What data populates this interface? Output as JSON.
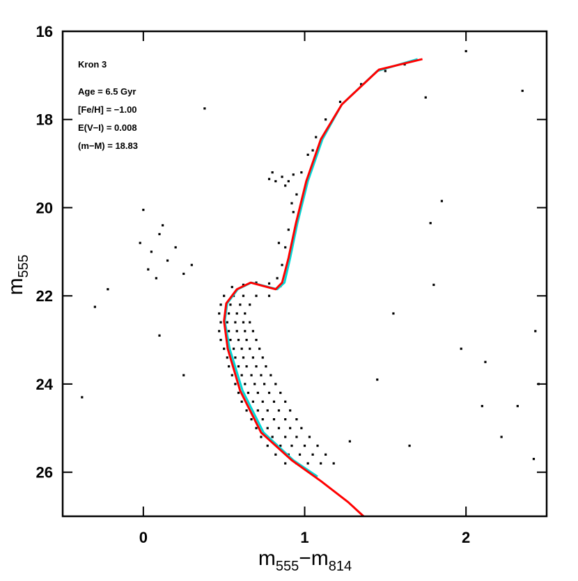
{
  "chart_data": {
    "type": "scatter",
    "annotations": [
      "Kron 3",
      "Age = 6.5 Gyr",
      "[Fe/H] = −1.00",
      "E(V−I) = 0.008",
      "(m−M) = 18.83"
    ],
    "xlabel": [
      "m",
      "555",
      "−m",
      "814"
    ],
    "ylabel": [
      "m",
      "555"
    ],
    "xlim": [
      -0.5,
      2.5
    ],
    "ylim": [
      27,
      16
    ],
    "xticks": [
      0,
      1,
      2
    ],
    "yticks": [
      16,
      18,
      20,
      22,
      24,
      26
    ],
    "points": {
      "color": "#000000",
      "x": [
        0.5,
        0.56,
        0.62,
        0.7,
        0.78,
        0.48,
        0.54,
        0.6,
        0.66,
        0.47,
        0.53,
        0.58,
        0.63,
        0.48,
        0.52,
        0.57,
        0.62,
        0.66,
        0.47,
        0.53,
        0.58,
        0.63,
        0.68,
        0.48,
        0.54,
        0.59,
        0.64,
        0.7,
        0.5,
        0.56,
        0.61,
        0.66,
        0.72,
        0.52,
        0.57,
        0.62,
        0.68,
        0.74,
        0.53,
        0.59,
        0.64,
        0.7,
        0.76,
        0.55,
        0.61,
        0.67,
        0.73,
        0.79,
        0.57,
        0.63,
        0.69,
        0.75,
        0.82,
        0.59,
        0.65,
        0.71,
        0.78,
        0.85,
        0.61,
        0.68,
        0.74,
        0.81,
        0.88,
        0.64,
        0.71,
        0.77,
        0.84,
        0.91,
        0.67,
        0.74,
        0.81,
        0.88,
        0.95,
        0.7,
        0.77,
        0.84,
        0.91,
        0.98,
        0.73,
        0.8,
        0.88,
        0.95,
        1.03,
        0.77,
        0.85,
        0.92,
        1.0,
        1.08,
        0.82,
        0.9,
        0.97,
        1.05,
        1.13,
        0.88,
        0.95,
        1.02,
        1.1,
        1.18,
        0.55,
        0.62,
        0.7,
        0.78,
        0.85,
        0.83,
        0.86,
        0.88,
        0.9,
        0.93,
        0.95,
        0.98,
        1.02,
        1.07,
        1.13,
        1.22,
        1.35,
        1.5,
        1.62,
        0.84,
        0.92,
        1.05,
        0.78,
        0.82,
        0.86,
        0.9,
        0.93,
        0.88,
        0.8,
        -0.02,
        0.05,
        0.1,
        0.15,
        0.2,
        0.03,
        0.12,
        0.25,
        0.08,
        0.3,
        0.0,
        -0.3,
        -0.22,
        -0.38,
        2.0,
        2.35,
        0.38,
        1.97,
        2.12,
        1.8,
        2.1,
        2.22,
        2.42,
        1.65,
        1.55,
        1.78,
        1.85,
        1.45,
        2.45,
        1.75,
        2.43,
        0.1,
        0.25,
        1.28,
        2.32
      ],
      "y": [
        22.0,
        22.0,
        22.0,
        22.0,
        22.0,
        22.2,
        22.2,
        22.2,
        22.2,
        22.4,
        22.4,
        22.4,
        22.4,
        22.6,
        22.6,
        22.6,
        22.6,
        22.6,
        22.8,
        22.8,
        22.8,
        22.8,
        22.8,
        23.0,
        23.0,
        23.0,
        23.0,
        23.0,
        23.2,
        23.2,
        23.2,
        23.2,
        23.2,
        23.4,
        23.4,
        23.4,
        23.4,
        23.4,
        23.6,
        23.6,
        23.6,
        23.6,
        23.6,
        23.8,
        23.8,
        23.8,
        23.8,
        23.8,
        24.0,
        24.0,
        24.0,
        24.0,
        24.0,
        24.2,
        24.2,
        24.2,
        24.2,
        24.2,
        24.4,
        24.4,
        24.4,
        24.4,
        24.4,
        24.6,
        24.6,
        24.6,
        24.6,
        24.6,
        24.8,
        24.8,
        24.8,
        24.8,
        24.8,
        25.0,
        25.0,
        25.0,
        25.0,
        25.0,
        25.2,
        25.2,
        25.2,
        25.2,
        25.2,
        25.4,
        25.4,
        25.4,
        25.4,
        25.4,
        25.6,
        25.6,
        25.6,
        25.6,
        25.6,
        25.8,
        25.8,
        25.8,
        25.8,
        25.8,
        21.8,
        21.75,
        21.7,
        21.72,
        21.78,
        21.6,
        21.3,
        20.9,
        20.5,
        20.1,
        19.7,
        19.2,
        18.8,
        18.4,
        18.0,
        17.6,
        17.2,
        16.9,
        16.75,
        20.8,
        19.9,
        18.7,
        19.35,
        19.4,
        19.3,
        19.4,
        19.25,
        19.5,
        19.2,
        20.8,
        21.0,
        20.6,
        21.2,
        20.9,
        21.4,
        20.4,
        21.5,
        21.6,
        21.3,
        20.05,
        22.25,
        21.85,
        24.3,
        16.45,
        17.35,
        17.75,
        23.2,
        23.5,
        21.75,
        24.5,
        25.2,
        25.7,
        25.4,
        22.4,
        20.35,
        19.85,
        23.9,
        24.0,
        17.5,
        22.8,
        22.9,
        23.8,
        25.3,
        24.5
      ]
    },
    "lines": [
      {
        "color": "#00d8d8",
        "x": [
          1.7,
          1.45,
          1.23,
          1.11,
          1.02,
          0.955,
          0.91,
          0.875,
          0.83,
          0.67,
          0.585,
          0.52,
          0.505,
          0.535,
          0.615,
          0.745,
          0.93,
          1.08
        ],
        "y": [
          16.63,
          16.9,
          17.66,
          18.45,
          19.4,
          20.35,
          21.14,
          21.7,
          21.85,
          21.7,
          21.85,
          22.17,
          22.57,
          23.2,
          24.15,
          25.1,
          25.73,
          26.1
        ]
      },
      {
        "color": "#ff0000",
        "x": [
          1.73,
          1.46,
          1.23,
          1.1,
          1.01,
          0.946,
          0.9,
          0.86,
          0.82,
          0.665,
          0.58,
          0.514,
          0.5,
          0.523,
          0.6,
          0.73,
          0.92,
          1.1,
          1.27,
          1.365
        ],
        "y": [
          16.63,
          16.87,
          17.66,
          18.45,
          19.4,
          20.35,
          21.14,
          21.7,
          21.85,
          21.7,
          21.85,
          22.17,
          22.57,
          23.2,
          24.15,
          25.1,
          25.73,
          26.2,
          26.68,
          27.0
        ]
      }
    ]
  }
}
